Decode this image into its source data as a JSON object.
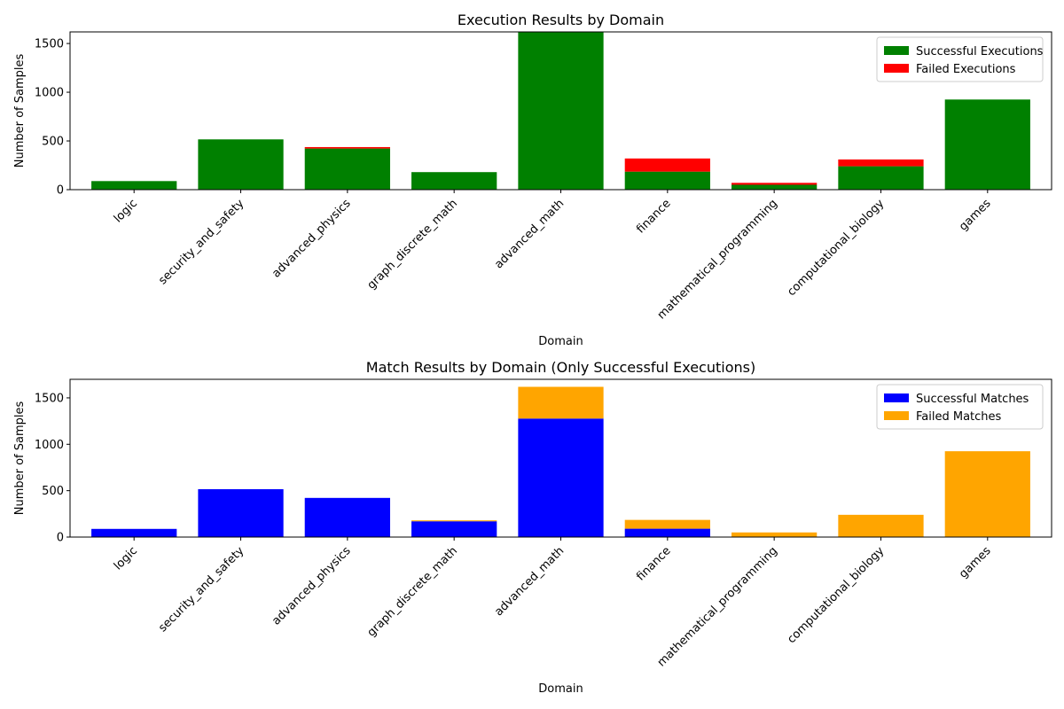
{
  "chart_data": [
    {
      "type": "bar",
      "stacked": true,
      "title": "Execution Results by Domain",
      "xlabel": "Domain",
      "ylabel": "Number of Samples",
      "categories": [
        "logic",
        "security_and_safety",
        "advanced_physics",
        "graph_discrete_math",
        "advanced_math",
        "finance",
        "mathematical_programming",
        "computational_biology",
        "games"
      ],
      "series": [
        {
          "name": "Successful Executions",
          "color": "#008000",
          "values": [
            88,
            516,
            422,
            180,
            1619,
            185,
            50,
            240,
            925
          ]
        },
        {
          "name": "Failed Executions",
          "color": "#ff0000",
          "values": [
            0,
            0,
            15,
            0,
            0,
            135,
            20,
            70,
            0
          ]
        }
      ],
      "ylim": [
        0,
        1619
      ],
      "yticks": [
        0,
        500,
        1000,
        1500
      ],
      "legend": "top-right",
      "grid": false
    },
    {
      "type": "bar",
      "stacked": true,
      "title": "Match Results by Domain (Only Successful Executions)",
      "xlabel": "Domain",
      "ylabel": "Number of Samples",
      "categories": [
        "logic",
        "security_and_safety",
        "advanced_physics",
        "graph_discrete_math",
        "advanced_math",
        "finance",
        "mathematical_programming",
        "computational_biology",
        "games"
      ],
      "series": [
        {
          "name": "Successful Matches",
          "color": "#0000ff",
          "values": [
            88,
            516,
            422,
            170,
            1277,
            90,
            0,
            0,
            0
          ]
        },
        {
          "name": "Failed Matches",
          "color": "#ffa500",
          "values": [
            0,
            0,
            0,
            10,
            342,
            95,
            50,
            240,
            925
          ]
        }
      ],
      "ylim": [
        0,
        1700
      ],
      "yticks": [
        0,
        500,
        1000,
        1500
      ],
      "legend": "top-right",
      "grid": false
    }
  ]
}
